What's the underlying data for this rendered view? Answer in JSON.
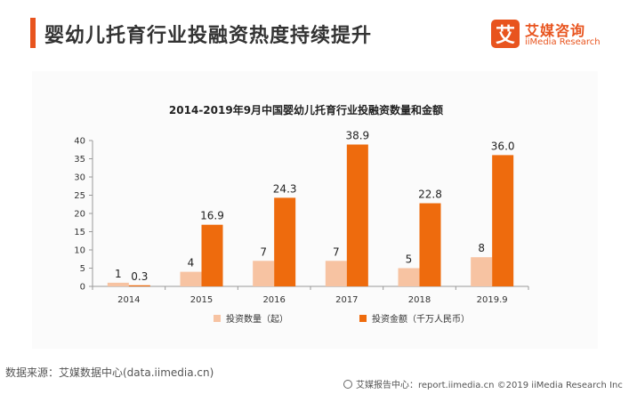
{
  "header": {
    "title": "婴幼儿托育行业投融资热度持续提升",
    "logo_mark": "艾",
    "logo_cn": "艾媒咨询",
    "logo_en": "iiMedia Research"
  },
  "colors": {
    "accent": "#e8541e",
    "series_count": "#f7c3a2",
    "series_amount": "#ee6b0d"
  },
  "chart_data": {
    "type": "bar",
    "title": "2014-2019年9月中国婴幼儿托育行业投融资数量和金额",
    "categories": [
      "2014",
      "2015",
      "2016",
      "2017",
      "2018",
      "2019.9"
    ],
    "series": [
      {
        "name": "投资数量（起）",
        "values": [
          1,
          4,
          7,
          7,
          5,
          8
        ],
        "labels": [
          "1",
          "4",
          "7",
          "7",
          "5",
          "8"
        ]
      },
      {
        "name": "投资金额（千万人民币）",
        "values": [
          0.3,
          16.9,
          24.3,
          38.9,
          22.8,
          36.0
        ],
        "labels": [
          "0.3",
          "16.9",
          "24.3",
          "38.9",
          "22.8",
          "36.0"
        ]
      }
    ],
    "ylim": [
      0,
      40
    ],
    "yticks": [
      "0",
      "5",
      "10",
      "15",
      "20",
      "25",
      "30",
      "35",
      "40"
    ],
    "legend_position": "bottom",
    "grid": false
  },
  "footer": {
    "source": "数据来源：艾媒数据中心(data.iimedia.cn)",
    "credit": "艾媒报告中心：report.iimedia.cn  ©2019  iiMedia Research  Inc"
  }
}
